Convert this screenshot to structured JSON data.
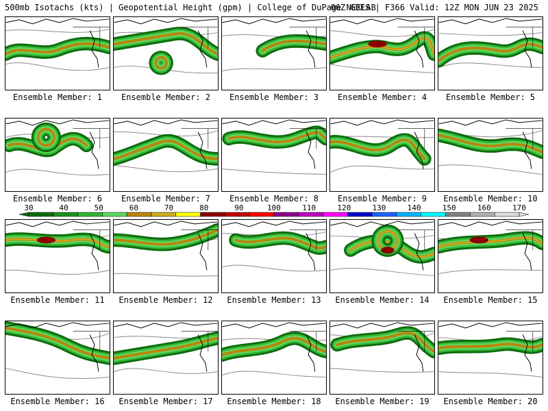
{
  "header": {
    "left": "500mb Isotachs (kts) | Geopotential Height (gpm) | College of DuPage NEXLAB",
    "right": "06Z GEFS | F366 Valid: 12Z MON JUN 23 2025"
  },
  "legend": {
    "ticks": [
      "30",
      "40",
      "50",
      "60",
      "70",
      "80",
      "90",
      "100",
      "110",
      "120",
      "130",
      "140",
      "150",
      "160",
      "170"
    ],
    "colors": [
      "#0d6b0d",
      "#1f8f1f",
      "#31b531",
      "#5fd65f",
      "#b8860b",
      "#cdae1e",
      "#ffff00",
      "#8b0000",
      "#c00000",
      "#ff0000",
      "#8b008b",
      "#c000c0",
      "#ff00ff",
      "#0000cd",
      "#1e64ff",
      "#00b4ff",
      "#00ffff",
      "#808080",
      "#b0b0b0",
      "#dcdcdc"
    ]
  },
  "panels": [
    {
      "label": "Ensemble Member: 1"
    },
    {
      "label": "Ensemble Member: 2"
    },
    {
      "label": "Ensemble Member: 3"
    },
    {
      "label": "Ensemble Member: 4"
    },
    {
      "label": "Ensemble Member: 5"
    },
    {
      "label": "Ensemble Member: 6"
    },
    {
      "label": "Ensemble Member: 7"
    },
    {
      "label": "Ensemble Member: 8"
    },
    {
      "label": "Ensemble Member: 9"
    },
    {
      "label": "Ensemble Member: 10"
    },
    {
      "label": "Ensemble Member: 11"
    },
    {
      "label": "Ensemble Member: 12"
    },
    {
      "label": "Ensemble Member: 13"
    },
    {
      "label": "Ensemble Member: 14"
    },
    {
      "label": "Ensemble Member: 15"
    },
    {
      "label": "Ensemble Member: 16"
    },
    {
      "label": "Ensemble Member: 17"
    },
    {
      "label": "Ensemble Member: 18"
    },
    {
      "label": "Ensemble Member: 19"
    },
    {
      "label": "Ensemble Member: 20"
    }
  ]
}
